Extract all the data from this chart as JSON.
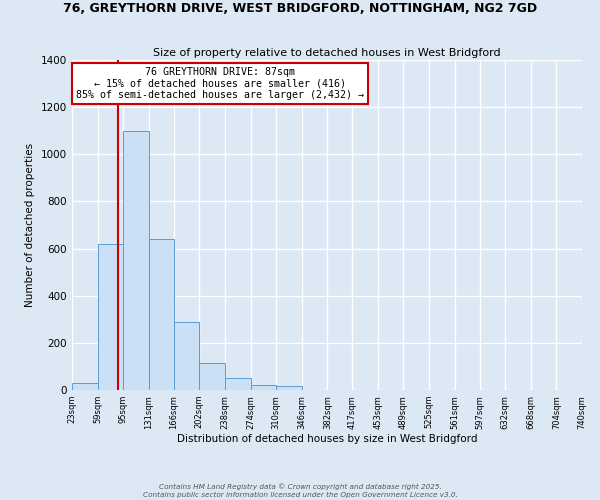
{
  "title": "76, GREYTHORN DRIVE, WEST BRIDGFORD, NOTTINGHAM, NG2 7GD",
  "subtitle": "Size of property relative to detached houses in West Bridgford",
  "xlabel": "Distribution of detached houses by size in West Bridgford",
  "ylabel": "Number of detached properties",
  "bin_edges": [
    23,
    59,
    95,
    131,
    166,
    202,
    238,
    274,
    310,
    346,
    382,
    417,
    453,
    489,
    525,
    561,
    597,
    632,
    668,
    704,
    740
  ],
  "bar_heights": [
    30,
    620,
    1100,
    640,
    290,
    115,
    50,
    20,
    15,
    0,
    0,
    0,
    0,
    0,
    0,
    0,
    0,
    0,
    0,
    0
  ],
  "bar_face_color": "#cce0f5",
  "bar_edge_color": "#5b9bd5",
  "property_line_x": 87,
  "property_line_color": "#cc0000",
  "annotation_title": "76 GREYTHORN DRIVE: 87sqm",
  "annotation_line1": "← 15% of detached houses are smaller (416)",
  "annotation_line2": "85% of semi-detached houses are larger (2,432) →",
  "annotation_box_color": "#ffffff",
  "annotation_box_edge": "#cc0000",
  "ylim": [
    0,
    1400
  ],
  "yticks": [
    0,
    200,
    400,
    600,
    800,
    1000,
    1200,
    1400
  ],
  "background_color": "#dde8f5",
  "plot_background_color": "#dde8f5",
  "grid_color": "#ffffff",
  "tick_labels": [
    "23sqm",
    "59sqm",
    "95sqm",
    "131sqm",
    "166sqm",
    "202sqm",
    "238sqm",
    "274sqm",
    "310sqm",
    "346sqm",
    "382sqm",
    "417sqm",
    "453sqm",
    "489sqm",
    "525sqm",
    "561sqm",
    "597sqm",
    "632sqm",
    "668sqm",
    "704sqm",
    "740sqm"
  ],
  "footer_line1": "Contains HM Land Registry data © Crown copyright and database right 2025.",
  "footer_line2": "Contains public sector information licensed under the Open Government Licence v3.0."
}
